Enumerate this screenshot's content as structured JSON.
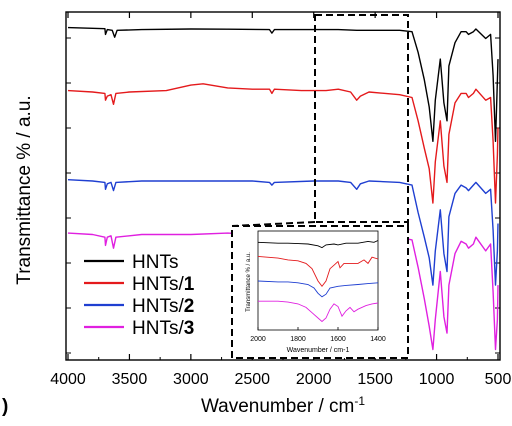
{
  "chart_data": [
    {
      "type": "line",
      "title": "",
      "xlabel": "Wavenumber / cm",
      "xlabel_sup": "-1",
      "ylabel": "Transmittance % / a.u.",
      "xlim": [
        4000,
        500
      ],
      "x_ticks": [
        4000,
        3500,
        3000,
        2500,
        2000,
        1500,
        1000,
        500
      ],
      "panel_letter": ")",
      "legend_position": "lower-left",
      "series": [
        {
          "name": "HNTs",
          "name_base": "HNTs",
          "name_suffix": "",
          "color": "#000000",
          "baseline": 0.08,
          "points": [
            [
              4000,
              0.07
            ],
            [
              3800,
              0.075
            ],
            [
              3700,
              0.078
            ],
            [
              3695,
              0.12
            ],
            [
              3680,
              0.085
            ],
            [
              3640,
              0.09
            ],
            [
              3620,
              0.14
            ],
            [
              3600,
              0.09
            ],
            [
              3400,
              0.085
            ],
            [
              3000,
              0.08
            ],
            [
              2700,
              0.082
            ],
            [
              2360,
              0.085
            ],
            [
              2340,
              0.11
            ],
            [
              2320,
              0.085
            ],
            [
              1800,
              0.085
            ],
            [
              1650,
              0.09
            ],
            [
              1300,
              0.09
            ],
            [
              1200,
              0.1
            ],
            [
              1150,
              0.25
            ],
            [
              1100,
              0.45
            ],
            [
              1060,
              0.65
            ],
            [
              1030,
              0.9
            ],
            [
              1010,
              0.6
            ],
            [
              970,
              0.3
            ],
            [
              940,
              0.62
            ],
            [
              915,
              0.75
            ],
            [
              900,
              0.35
            ],
            [
              850,
              0.18
            ],
            [
              800,
              0.1
            ],
            [
              760,
              0.1
            ],
            [
              740,
              0.12
            ],
            [
              700,
              0.1
            ],
            [
              680,
              0.08
            ],
            [
              600,
              0.15
            ],
            [
              560,
              0.12
            ],
            [
              540,
              0.42
            ],
            [
              520,
              0.9
            ],
            [
              510,
              0.6
            ],
            [
              500,
              0.3
            ]
          ]
        },
        {
          "name": "HNTs/1",
          "name_base": "HNTs/",
          "name_suffix": "1",
          "color": "#e41a1c",
          "baseline": 0.55,
          "points": [
            [
              4000,
              0.53
            ],
            [
              3800,
              0.54
            ],
            [
              3700,
              0.55
            ],
            [
              3695,
              0.6
            ],
            [
              3680,
              0.57
            ],
            [
              3650,
              0.56
            ],
            [
              3630,
              0.63
            ],
            [
              3610,
              0.55
            ],
            [
              3500,
              0.54
            ],
            [
              3200,
              0.53
            ],
            [
              3000,
              0.49
            ],
            [
              2900,
              0.48
            ],
            [
              2700,
              0.51
            ],
            [
              2500,
              0.52
            ],
            [
              2360,
              0.52
            ],
            [
              2340,
              0.55
            ],
            [
              2320,
              0.52
            ],
            [
              2100,
              0.53
            ],
            [
              1900,
              0.53
            ],
            [
              1800,
              0.52
            ],
            [
              1700,
              0.54
            ],
            [
              1650,
              0.6
            ],
            [
              1620,
              0.57
            ],
            [
              1550,
              0.54
            ],
            [
              1300,
              0.56
            ],
            [
              1200,
              0.58
            ],
            [
              1150,
              0.75
            ],
            [
              1100,
              0.95
            ],
            [
              1060,
              1.1
            ],
            [
              1030,
              1.35
            ],
            [
              1010,
              1.05
            ],
            [
              970,
              0.75
            ],
            [
              940,
              1.08
            ],
            [
              915,
              1.2
            ],
            [
              900,
              0.85
            ],
            [
              850,
              0.62
            ],
            [
              800,
              0.55
            ],
            [
              760,
              0.55
            ],
            [
              740,
              0.58
            ],
            [
              700,
              0.55
            ],
            [
              680,
              0.52
            ],
            [
              600,
              0.6
            ],
            [
              560,
              0.58
            ],
            [
              540,
              0.9
            ],
            [
              520,
              1.35
            ],
            [
              505,
              1.0
            ],
            [
              500,
              0.8
            ]
          ]
        },
        {
          "name": "HNTs/2",
          "name_base": "HNTs/",
          "name_suffix": "2",
          "color": "#1f3fd1",
          "baseline": 1.2,
          "points": [
            [
              4000,
              1.18
            ],
            [
              3800,
              1.19
            ],
            [
              3700,
              1.2
            ],
            [
              3695,
              1.25
            ],
            [
              3680,
              1.21
            ],
            [
              3650,
              1.2
            ],
            [
              3630,
              1.26
            ],
            [
              3610,
              1.2
            ],
            [
              3400,
              1.19
            ],
            [
              3000,
              1.19
            ],
            [
              2700,
              1.19
            ],
            [
              2500,
              1.19
            ],
            [
              2360,
              1.2
            ],
            [
              2340,
              1.22
            ],
            [
              2320,
              1.2
            ],
            [
              2000,
              1.19
            ],
            [
              1800,
              1.19
            ],
            [
              1700,
              1.2
            ],
            [
              1650,
              1.25
            ],
            [
              1620,
              1.21
            ],
            [
              1550,
              1.19
            ],
            [
              1300,
              1.2
            ],
            [
              1200,
              1.22
            ],
            [
              1150,
              1.42
            ],
            [
              1100,
              1.6
            ],
            [
              1060,
              1.75
            ],
            [
              1030,
              1.95
            ],
            [
              1010,
              1.7
            ],
            [
              970,
              1.4
            ],
            [
              940,
              1.72
            ],
            [
              915,
              1.85
            ],
            [
              900,
              1.45
            ],
            [
              850,
              1.28
            ],
            [
              800,
              1.22
            ],
            [
              760,
              1.24
            ],
            [
              740,
              1.26
            ],
            [
              700,
              1.22
            ],
            [
              680,
              1.2
            ],
            [
              600,
              1.28
            ],
            [
              560,
              1.25
            ],
            [
              540,
              1.55
            ],
            [
              520,
              1.95
            ],
            [
              505,
              1.7
            ],
            [
              500,
              1.5
            ]
          ]
        },
        {
          "name": "HNTs/3",
          "name_base": "HNTs/",
          "name_suffix": "3",
          "color": "#e020e0",
          "baseline": 1.58,
          "points": [
            [
              4000,
              1.57
            ],
            [
              3800,
              1.58
            ],
            [
              3700,
              1.6
            ],
            [
              3695,
              1.66
            ],
            [
              3680,
              1.6
            ],
            [
              3650,
              1.59
            ],
            [
              3630,
              1.68
            ],
            [
              3610,
              1.6
            ],
            [
              3400,
              1.58
            ],
            [
              3000,
              1.58
            ],
            [
              2700,
              1.57
            ],
            [
              2500,
              1.58
            ],
            [
              2380,
              1.59
            ],
            [
              2360,
              1.6
            ],
            [
              2340,
              1.65
            ],
            [
              2320,
              1.59
            ],
            [
              2000,
              1.58
            ],
            [
              1800,
              1.58
            ],
            [
              1700,
              1.6
            ],
            [
              1650,
              1.67
            ],
            [
              1620,
              1.62
            ],
            [
              1560,
              1.58
            ],
            [
              1520,
              1.57
            ],
            [
              1450,
              1.59
            ],
            [
              1300,
              1.6
            ],
            [
              1200,
              1.62
            ],
            [
              1150,
              1.82
            ],
            [
              1100,
              2.05
            ],
            [
              1060,
              2.25
            ],
            [
              1030,
              2.42
            ],
            [
              1010,
              2.2
            ],
            [
              970,
              1.85
            ],
            [
              940,
              2.18
            ],
            [
              915,
              2.3
            ],
            [
              900,
              1.95
            ],
            [
              850,
              1.72
            ],
            [
              800,
              1.63
            ],
            [
              760,
              1.65
            ],
            [
              740,
              1.68
            ],
            [
              700,
              1.65
            ],
            [
              680,
              1.6
            ],
            [
              600,
              1.7
            ],
            [
              560,
              1.65
            ],
            [
              540,
              2.0
            ],
            [
              520,
              2.42
            ],
            [
              505,
              2.2
            ],
            [
              500,
              1.95
            ]
          ]
        }
      ]
    },
    {
      "type": "line",
      "title": "",
      "xlabel": "Wavenumber / cm-1",
      "ylabel": "Transmittance % / a.u.",
      "xlim": [
        2000,
        1400
      ],
      "x_ticks": [
        2000,
        1800,
        1600,
        1400
      ],
      "series": [
        {
          "name": "",
          "color": "#000000",
          "points": [
            [
              2000,
              0.06
            ],
            [
              1900,
              0.07
            ],
            [
              1850,
              0.07
            ],
            [
              1800,
              0.075
            ],
            [
              1750,
              0.08
            ],
            [
              1700,
              0.1
            ],
            [
              1680,
              0.12
            ],
            [
              1660,
              0.09
            ],
            [
              1620,
              0.08
            ],
            [
              1600,
              0.09
            ],
            [
              1560,
              0.07
            ],
            [
              1500,
              0.07
            ],
            [
              1450,
              0.05
            ],
            [
              1420,
              0.06
            ],
            [
              1400,
              0.04
            ]
          ]
        },
        {
          "name": "",
          "color": "#e41a1c",
          "points": [
            [
              2000,
              0.22
            ],
            [
              1900,
              0.24
            ],
            [
              1850,
              0.26
            ],
            [
              1800,
              0.27
            ],
            [
              1760,
              0.3
            ],
            [
              1730,
              0.36
            ],
            [
              1700,
              0.5
            ],
            [
              1680,
              0.56
            ],
            [
              1660,
              0.5
            ],
            [
              1640,
              0.36
            ],
            [
              1620,
              0.32
            ],
            [
              1600,
              0.28
            ],
            [
              1590,
              0.35
            ],
            [
              1570,
              0.3
            ],
            [
              1530,
              0.3
            ],
            [
              1500,
              0.3
            ],
            [
              1470,
              0.26
            ],
            [
              1450,
              0.3
            ],
            [
              1430,
              0.23
            ],
            [
              1400,
              0.25
            ]
          ]
        },
        {
          "name": "",
          "color": "#1f3fd1",
          "points": [
            [
              2000,
              0.5
            ],
            [
              1900,
              0.51
            ],
            [
              1850,
              0.51
            ],
            [
              1800,
              0.52
            ],
            [
              1750,
              0.54
            ],
            [
              1720,
              0.58
            ],
            [
              1700,
              0.64
            ],
            [
              1680,
              0.68
            ],
            [
              1660,
              0.65
            ],
            [
              1640,
              0.58
            ],
            [
              1600,
              0.56
            ],
            [
              1560,
              0.55
            ],
            [
              1500,
              0.54
            ],
            [
              1450,
              0.53
            ],
            [
              1400,
              0.52
            ]
          ]
        },
        {
          "name": "",
          "color": "#e020e0",
          "points": [
            [
              2000,
              0.73
            ],
            [
              1900,
              0.73
            ],
            [
              1850,
              0.74
            ],
            [
              1800,
              0.76
            ],
            [
              1760,
              0.8
            ],
            [
              1730,
              0.86
            ],
            [
              1700,
              0.92
            ],
            [
              1680,
              0.96
            ],
            [
              1660,
              0.92
            ],
            [
              1640,
              0.82
            ],
            [
              1620,
              0.76
            ],
            [
              1600,
              0.79
            ],
            [
              1580,
              0.9
            ],
            [
              1560,
              0.84
            ],
            [
              1540,
              0.8
            ],
            [
              1520,
              0.85
            ],
            [
              1500,
              0.82
            ],
            [
              1460,
              0.78
            ],
            [
              1430,
              0.76
            ],
            [
              1400,
              0.75
            ]
          ]
        }
      ]
    }
  ]
}
